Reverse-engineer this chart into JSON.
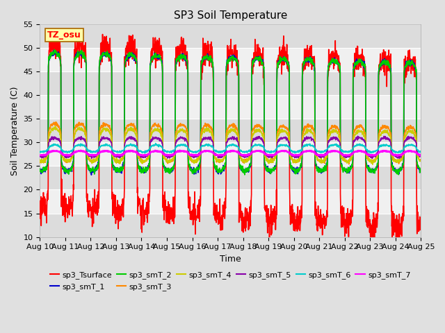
{
  "title": "SP3 Soil Temperature",
  "ylabel": "Soil Temperature (C)",
  "xlabel": "Time",
  "tz_label": "TZ_osu",
  "ylim": [
    10,
    55
  ],
  "y_ticks": [
    10,
    15,
    20,
    25,
    30,
    35,
    40,
    45,
    50,
    55
  ],
  "x_tick_labels": [
    "Aug 10",
    "Aug 11",
    "Aug 12",
    "Aug 13",
    "Aug 14",
    "Aug 15",
    "Aug 16",
    "Aug 17",
    "Aug 18",
    "Aug 19",
    "Aug 20",
    "Aug 21",
    "Aug 22",
    "Aug 23",
    "Aug 24",
    "Aug 25"
  ],
  "series_names": [
    "sp3_Tsurface",
    "sp3_smT_1",
    "sp3_smT_2",
    "sp3_smT_3",
    "sp3_smT_4",
    "sp3_smT_5",
    "sp3_smT_6",
    "sp3_smT_7"
  ],
  "colors": [
    "#ff0000",
    "#0000cc",
    "#00cc00",
    "#ff8800",
    "#cccc00",
    "#8800aa",
    "#00cccc",
    "#ff00ff"
  ],
  "linewidths": [
    1.2,
    1.2,
    1.2,
    1.2,
    1.2,
    1.2,
    1.2,
    1.8
  ],
  "bg_color": "#e0e0e0",
  "plot_bg_light": "#f0f0f0",
  "plot_bg_dark": "#dcdcdc",
  "title_fontsize": 11,
  "label_fontsize": 9,
  "tick_fontsize": 8,
  "legend_fontsize": 8
}
